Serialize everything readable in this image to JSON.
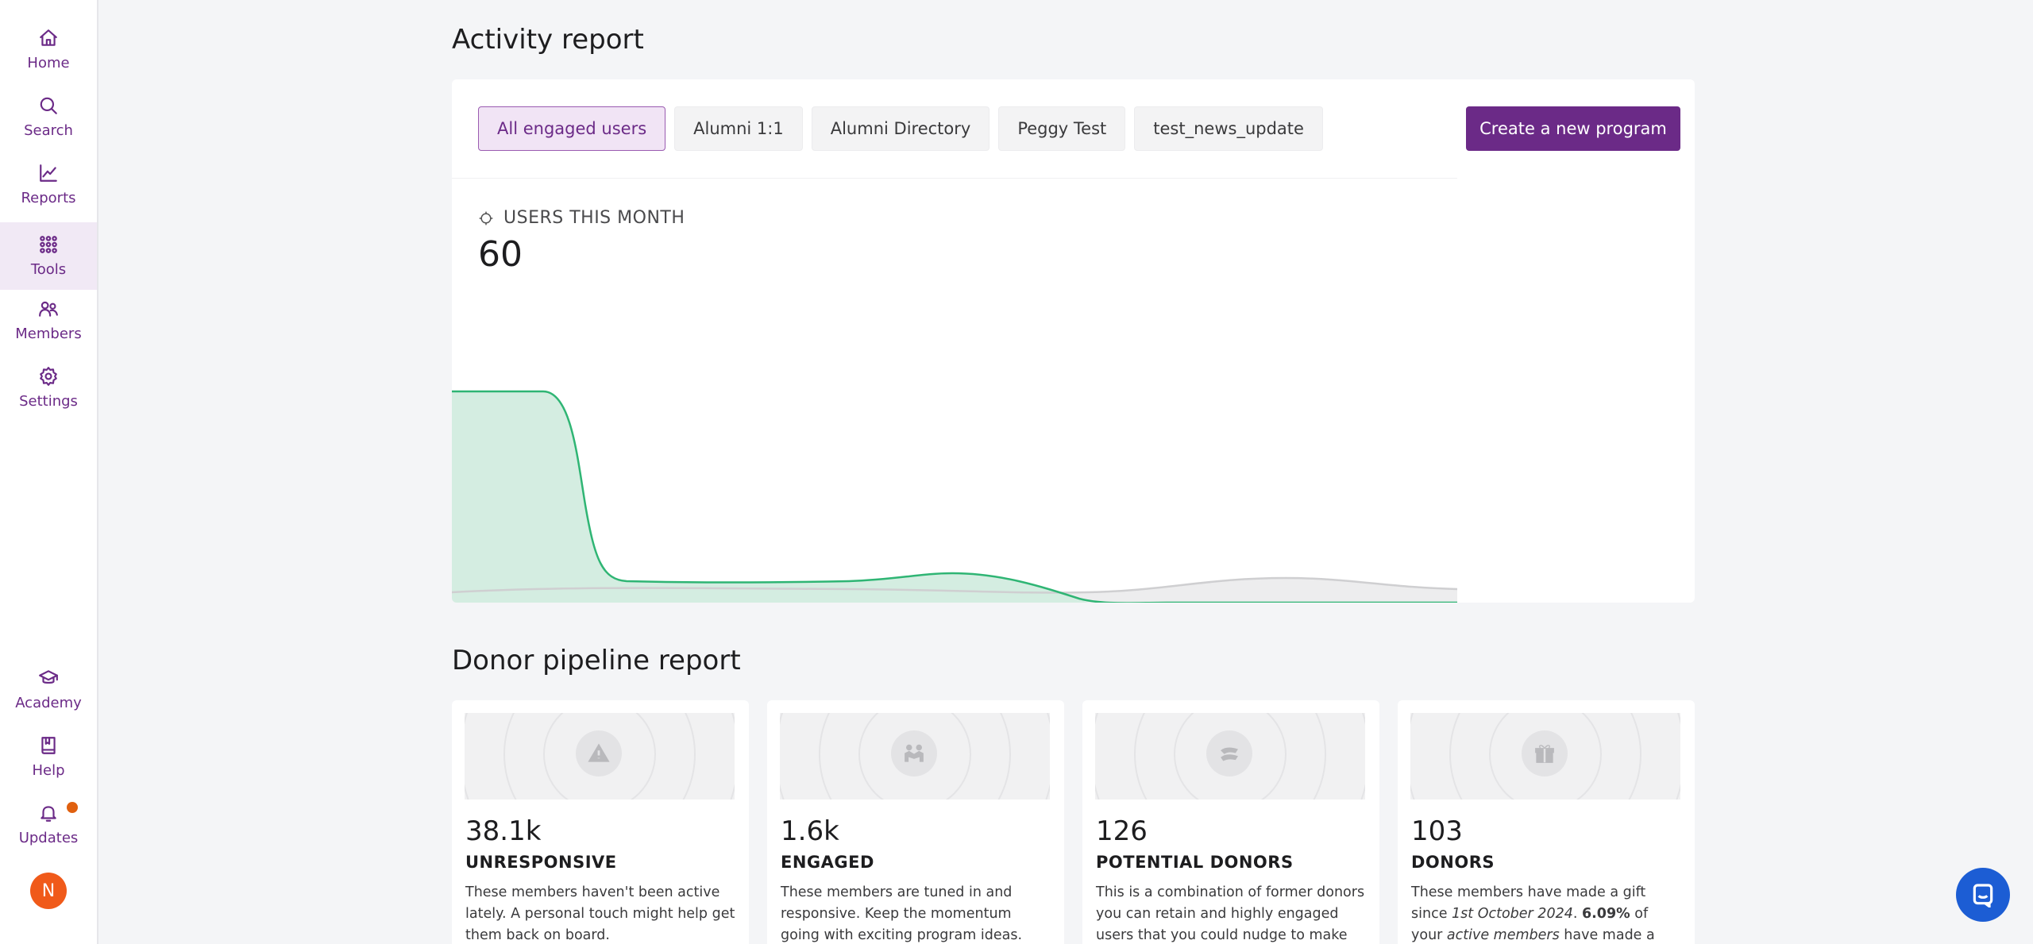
{
  "sidebar": {
    "top_items": [
      {
        "label": "Home",
        "icon": "home-icon"
      },
      {
        "label": "Search",
        "icon": "search-icon"
      },
      {
        "label": "Reports",
        "icon": "chart-line-icon"
      },
      {
        "label": "Tools",
        "icon": "grid-icon",
        "active": true
      },
      {
        "label": "Members",
        "icon": "members-icon"
      },
      {
        "label": "Settings",
        "icon": "gear-icon"
      }
    ],
    "bottom_items": [
      {
        "label": "Academy",
        "icon": "graduation-cap-icon"
      },
      {
        "label": "Help",
        "icon": "book-icon"
      },
      {
        "label": "Updates",
        "icon": "bell-icon"
      }
    ],
    "avatar_initial": "N"
  },
  "activity": {
    "title": "Activity report",
    "tabs": [
      "All engaged users",
      "Alumni 1:1",
      "Alumni Directory",
      "Peggy Test",
      "test_news_update"
    ],
    "active_tab": "All engaged users",
    "create_button": "Create a new program",
    "metric_label": "USERS THIS MONTH",
    "metric_value": "60"
  },
  "donor": {
    "title": "Donor pipeline report",
    "cards": [
      {
        "value": "38.1k",
        "title": "UNRESPONSIVE",
        "icon": "warning-icon",
        "desc": "These members haven't been active lately. A personal touch might help get them back on board."
      },
      {
        "value": "1.6k",
        "title": "ENGAGED",
        "icon": "handshake-icon",
        "desc": "These members are tuned in and responsive. Keep the momentum going with exciting program ideas."
      },
      {
        "value": "126",
        "title": "POTENTIAL DONORS",
        "icon": "hand-coin-icon",
        "desc": "This is a combination of former donors you can retain and highly engaged users that you could nudge to make their first"
      },
      {
        "value": "103",
        "title": "DONORS",
        "icon": "gift-icon",
        "desc_parts": [
          "These members have made a gift since ",
          "1st October 2024",
          ". ",
          "6.09%",
          " of your ",
          "active members",
          " have made a gift this year."
        ]
      }
    ]
  },
  "colors": {
    "brand": "#6b2a87",
    "chart_green": "#2fb574",
    "chart_fill": "#d4ede1",
    "chat": "#1c5dd4",
    "alert": "#e0600f"
  }
}
